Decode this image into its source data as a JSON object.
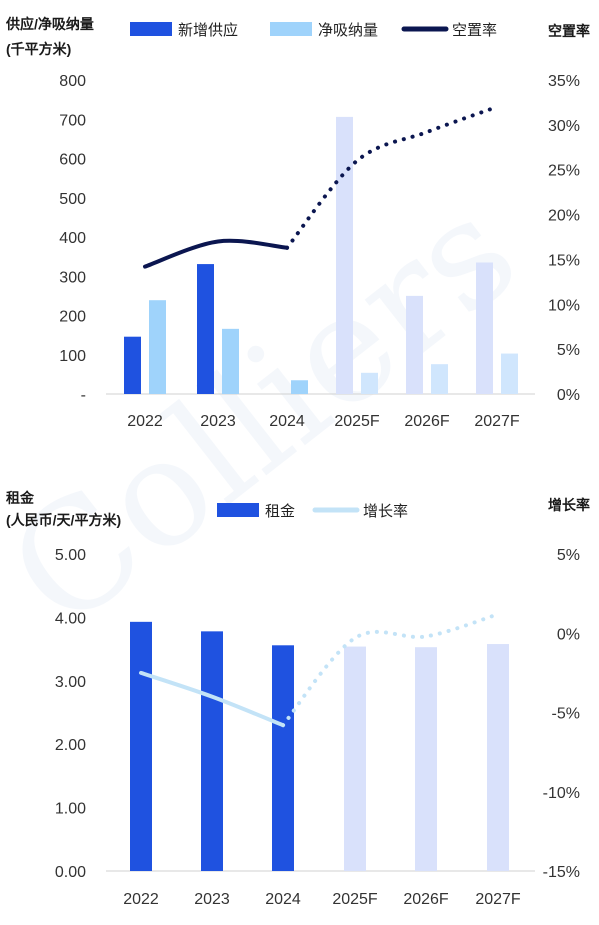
{
  "watermark": "Colliers",
  "charts": [
    {
      "type": "bar+line",
      "ylabel_left_line1": "供应/净吸纳量",
      "ylabel_left_line2": "(千平方米)",
      "ylabel_right": "空置率",
      "categories": [
        "2022",
        "2023",
        "2024",
        "2025F",
        "2026F",
        "2027F"
      ],
      "forecast_from_index": 3,
      "ylim_left": [
        0,
        800
      ],
      "yticks_left": [
        "-",
        "100",
        "200",
        "300",
        "400",
        "500",
        "600",
        "700",
        "800"
      ],
      "ylim_right": [
        0,
        35
      ],
      "yticks_right": [
        "0%",
        "5%",
        "10%",
        "15%",
        "20%",
        "25%",
        "30%",
        "35%"
      ],
      "legend": [
        "新增供应",
        "净吸纳量",
        "空置率"
      ],
      "series": [
        {
          "name": "新增供应",
          "kind": "bar",
          "color": "#1f52e0",
          "forecast_color": "#d9e1fb",
          "values": [
            146,
            331,
            0,
            706,
            250,
            335
          ]
        },
        {
          "name": "净吸纳量",
          "kind": "bar",
          "color": "#9fd3fb",
          "forecast_color": "#d0e6fd",
          "values": [
            239,
            166,
            35,
            54,
            76,
            103
          ]
        },
        {
          "name": "空置率",
          "kind": "line",
          "color": "#0b1650",
          "values": [
            14.2,
            17.0,
            16.3,
            26.0,
            29.2,
            32.0
          ]
        }
      ]
    },
    {
      "type": "bar+line",
      "ylabel_left_line1": "租金",
      "ylabel_left_line2": "(人民币/天/平方米)",
      "ylabel_right": "增长率",
      "categories": [
        "2022",
        "2023",
        "2024",
        "2025F",
        "2026F",
        "2027F"
      ],
      "forecast_from_index": 3,
      "ylim_left": [
        0,
        5
      ],
      "yticks_left": [
        "0.00",
        "1.00",
        "2.00",
        "3.00",
        "4.00",
        "5.00"
      ],
      "ylim_right": [
        -15,
        5
      ],
      "yticks_right": [
        "-15%",
        "-10%",
        "-5%",
        "0%",
        "5%"
      ],
      "legend": [
        "租金",
        "增长率"
      ],
      "series": [
        {
          "name": "租金",
          "kind": "bar",
          "color": "#1f52e0",
          "forecast_color": "#d9e1fb",
          "values": [
            3.93,
            3.78,
            3.56,
            3.54,
            3.53,
            3.58
          ]
        },
        {
          "name": "增长率",
          "kind": "line",
          "color": "#c3e3f7",
          "values": [
            -2.5,
            -4.0,
            -5.8,
            -0.3,
            -0.2,
            1.2
          ]
        }
      ]
    }
  ]
}
